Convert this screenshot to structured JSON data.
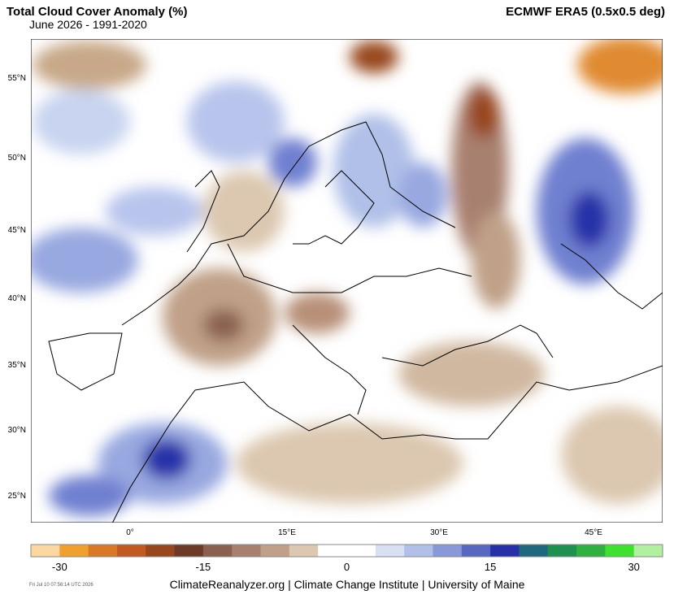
{
  "header": {
    "title": "Total Cloud Cover Anomaly (%)",
    "subtitle": "June 2026 - 1991-2020",
    "source": "ECMWF ERA5 (0.5x0.5 deg)"
  },
  "map": {
    "lat_labels": [
      "55°N",
      "50°N",
      "45°N",
      "40°N",
      "35°N",
      "30°N",
      "25°N"
    ],
    "lon_labels": [
      "0°",
      "15°E",
      "30°E",
      "45°E"
    ]
  },
  "colorbar": {
    "colors": [
      "#fcd7a2",
      "#f0a030",
      "#d87828",
      "#c05a20",
      "#98461e",
      "#6e3a28",
      "#8a6050",
      "#a88070",
      "#c0a088",
      "#dcc8b0",
      "#ffffff",
      "#ffffff",
      "#d8e0f4",
      "#b0c0e8",
      "#8898d8",
      "#5868c0",
      "#2830a8",
      "#206880",
      "#209050",
      "#30b040",
      "#40e030",
      "#b0f0a0"
    ],
    "ticks": [
      -30,
      -15,
      0,
      15,
      30
    ]
  },
  "footer": {
    "credit": "ClimateReanalyzer.org | Climate Change Institute | University of Maine",
    "timestamp": "Fri Jul 10 07:56:14 UTC 2026"
  }
}
